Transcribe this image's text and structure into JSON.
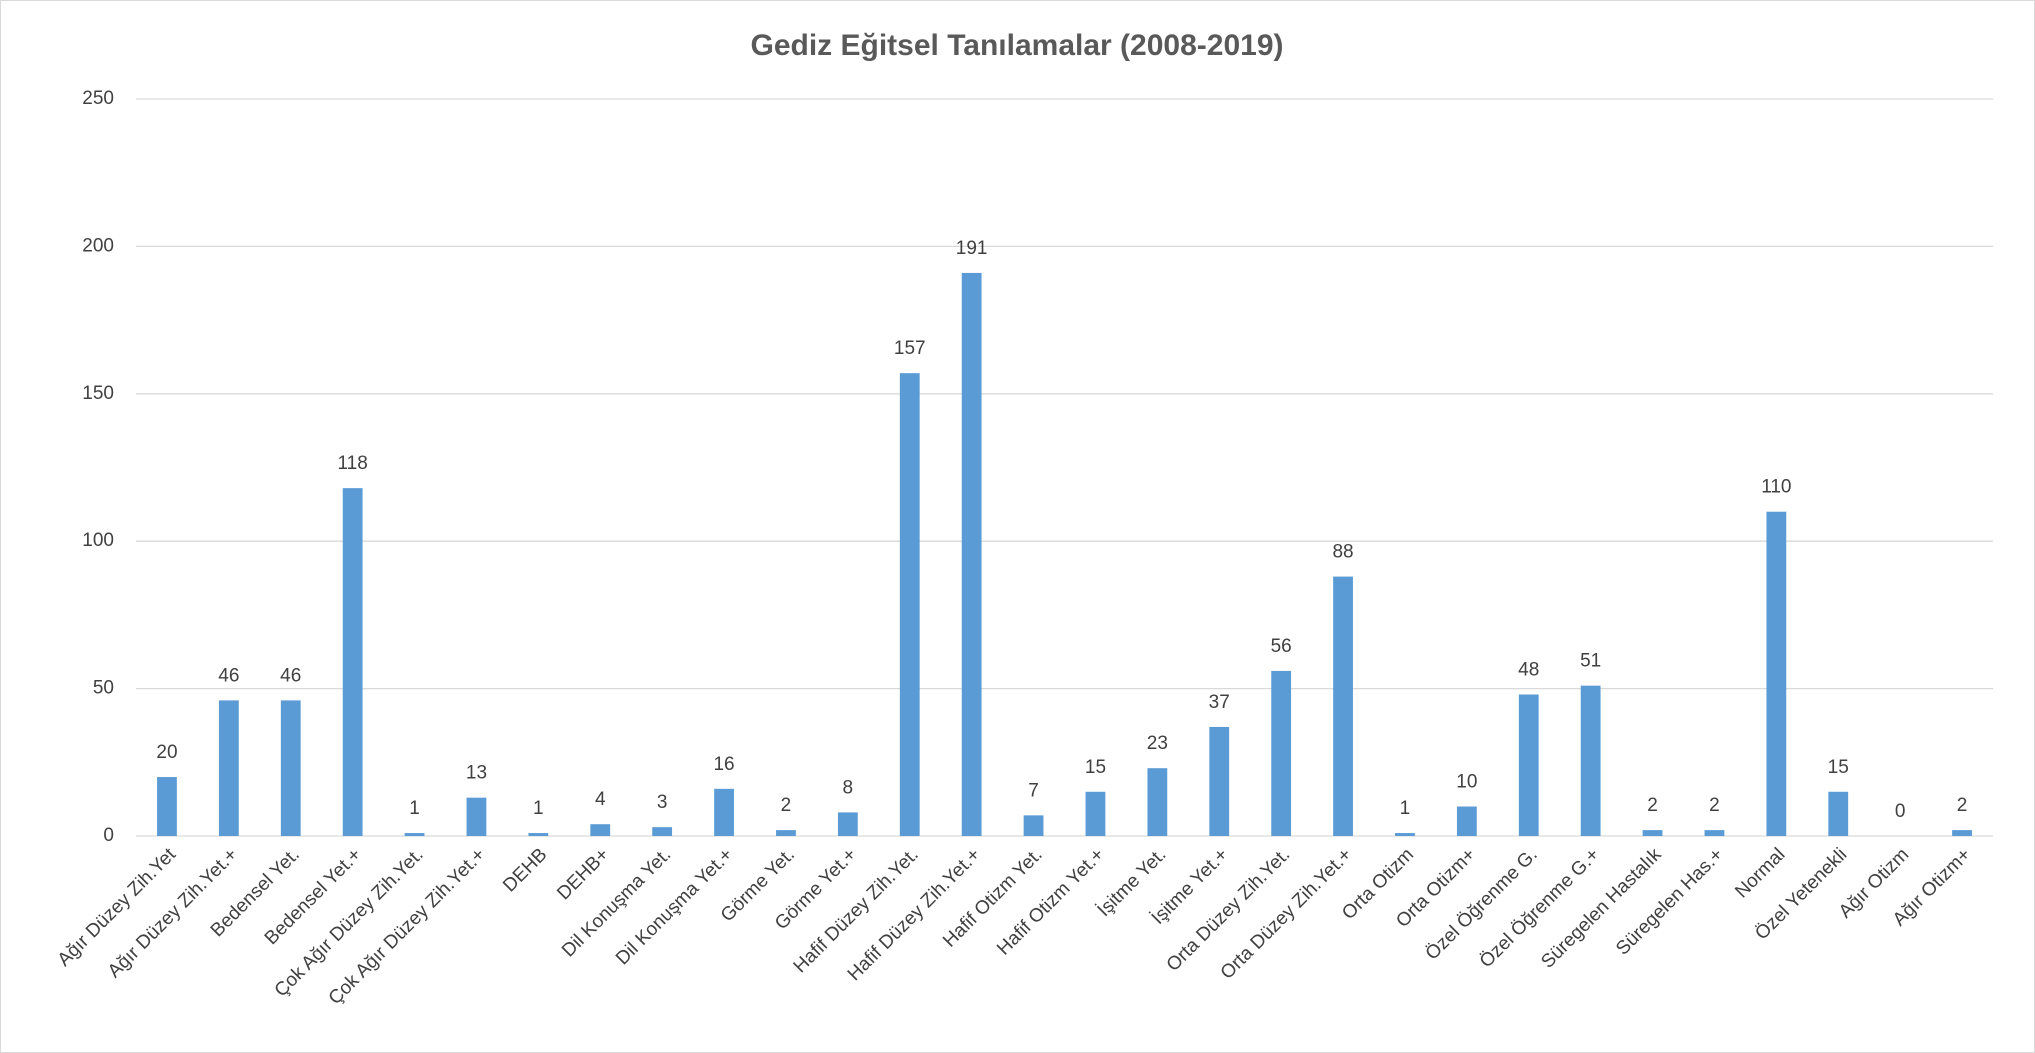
{
  "chart_data": {
    "type": "bar",
    "title": "Gediz Eğitsel Tanılamalar (2008-2019)",
    "categories": [
      "Ağır Düzey Zih.Yet",
      "Ağır Düzey Zih.Yet.+",
      "Bedensel Yet.",
      "Bedensel Yet.+",
      "Çok Ağır Düzey Zih.Yet.",
      "Çok Ağır Düzey Zih.Yet.+",
      "DEHB",
      "DEHB+",
      "Dil Konuşma Yet.",
      "Dil Konuşma Yet.+",
      "Görme Yet.",
      "Görme Yet.+",
      "Hafif Düzey Zih.Yet.",
      "Hafif Düzey Zih.Yet.+",
      "Hafif Otizm Yet.",
      "Hafif Otizm Yet.+",
      "İşitme Yet.",
      "İşitme Yet.+",
      "Orta Düzey Zih.Yet.",
      "Orta Düzey Zih.Yet.+",
      "Orta Otizm",
      "Orta Otizm+",
      "Özel Öğrenme G.",
      "Özel Öğrenme G.+",
      "Süregelen Hastalık",
      "Süregelen Has.+",
      "Normal",
      "Özel Yetenekli",
      "Ağır Otizm",
      "Ağır Otizm+"
    ],
    "values": [
      20,
      46,
      46,
      118,
      1,
      13,
      1,
      4,
      3,
      16,
      2,
      8,
      157,
      191,
      7,
      15,
      23,
      37,
      56,
      88,
      1,
      10,
      48,
      51,
      2,
      2,
      110,
      15,
      0,
      2
    ],
    "color": "#5b9bd5",
    "ylim": [
      0,
      250
    ],
    "yticks": [
      0,
      50,
      100,
      150,
      200,
      250
    ],
    "grid": true
  }
}
